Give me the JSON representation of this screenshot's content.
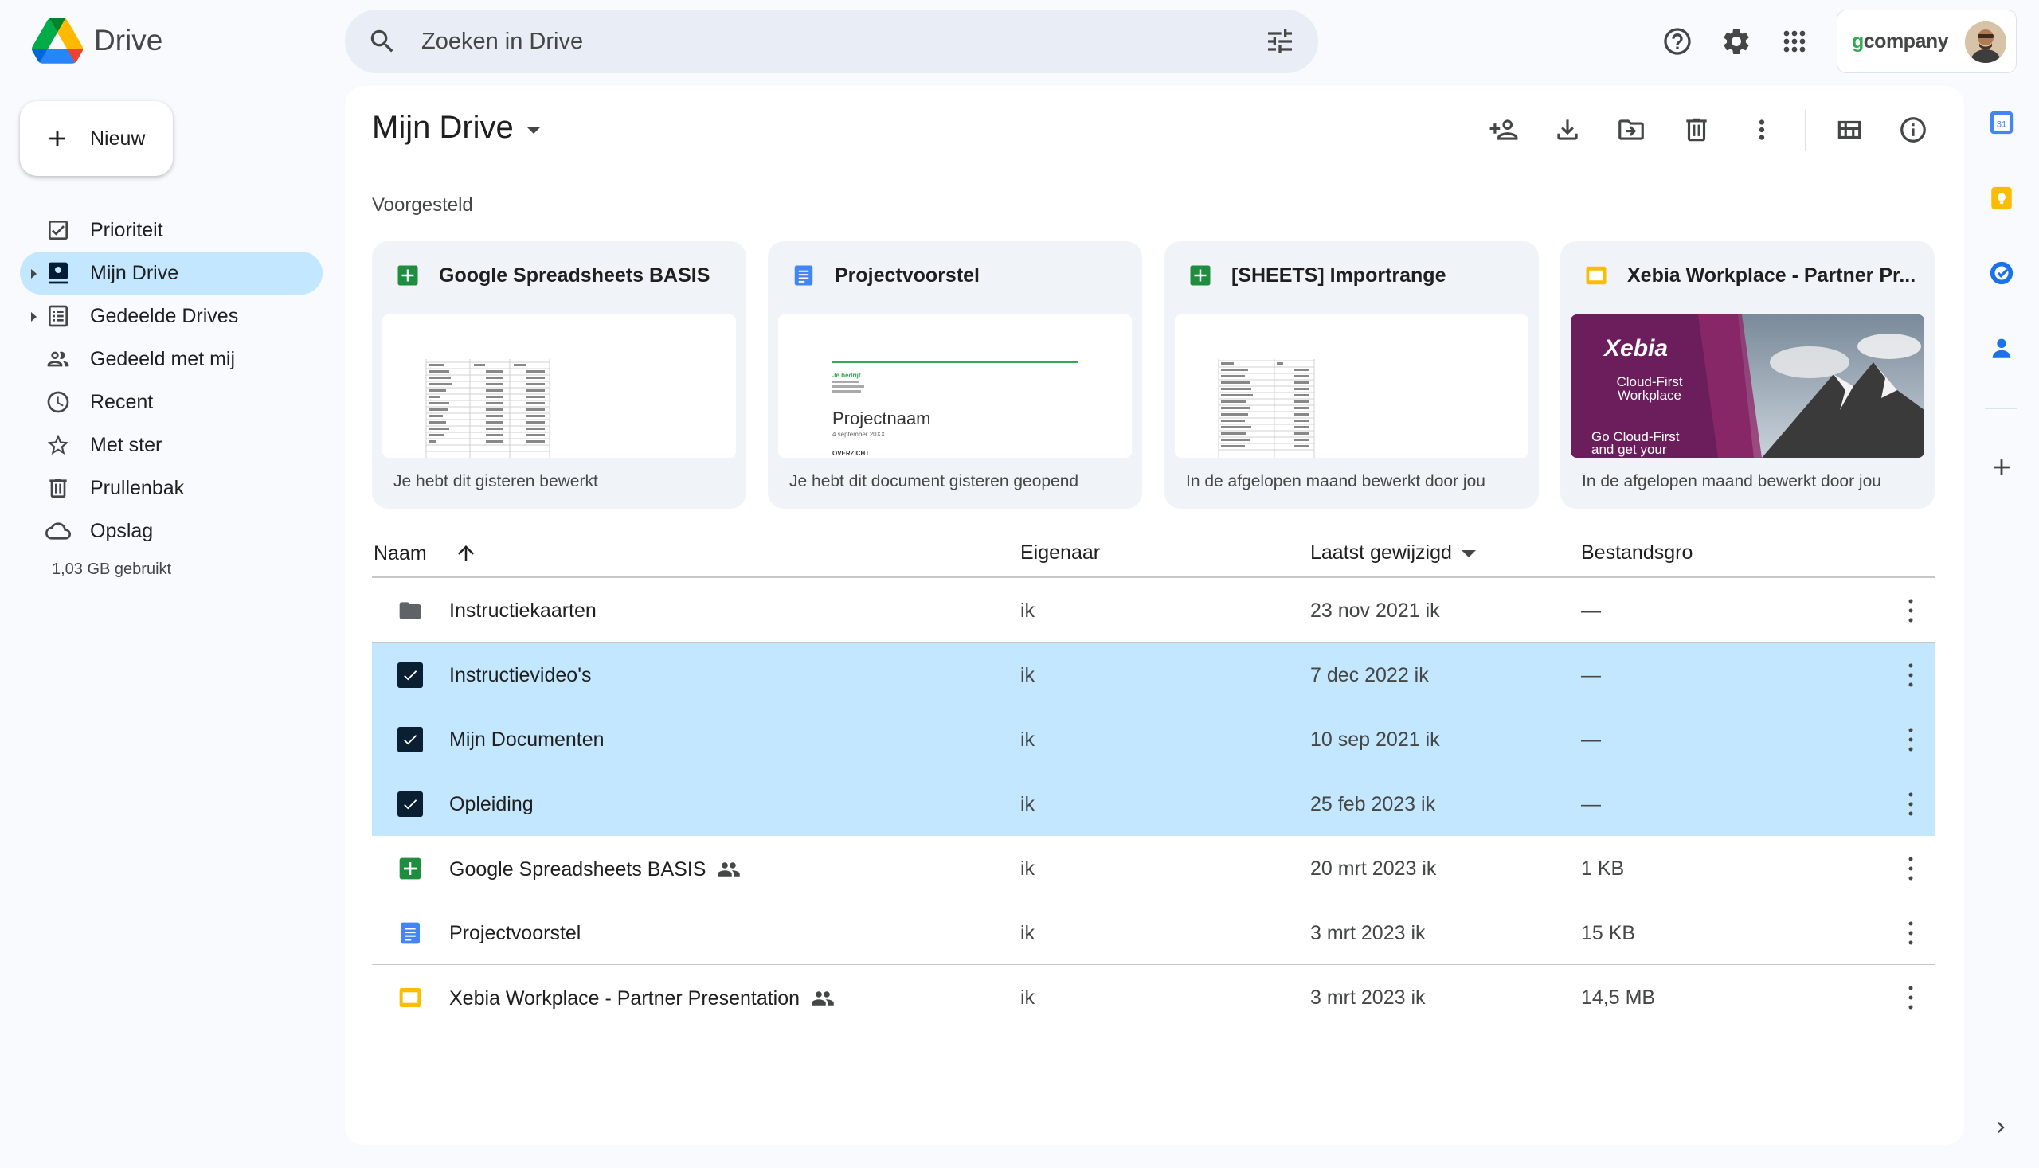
{
  "app": {
    "title": "Drive"
  },
  "search": {
    "placeholder": "Zoeken in Drive"
  },
  "account": {
    "brand_g": "g",
    "brand_rest": "company"
  },
  "sidebar": {
    "new_label": "Nieuw",
    "items": [
      {
        "label": "Prioriteit",
        "icon": "priority-icon"
      },
      {
        "label": "Mijn Drive",
        "icon": "my-drive-icon",
        "active": true
      },
      {
        "label": "Gedeelde Drives",
        "icon": "shared-drives-icon"
      },
      {
        "label": "Gedeeld met mij",
        "icon": "shared-with-me-icon"
      },
      {
        "label": "Recent",
        "icon": "clock-icon"
      },
      {
        "label": "Met ster",
        "icon": "star-icon"
      },
      {
        "label": "Prullenbak",
        "icon": "trash-icon"
      },
      {
        "label": "Opslag",
        "icon": "cloud-icon"
      }
    ],
    "storage_used": "1,03 GB gebruikt"
  },
  "main": {
    "title": "Mijn Drive",
    "suggested_label": "Voorgesteld",
    "cards": [
      {
        "title": "Google Spreadsheets BASIS",
        "type": "sheets",
        "footer": "Je hebt dit gisteren bewerkt"
      },
      {
        "title": "Projectvoorstel",
        "type": "docs",
        "footer": "Je hebt dit document gisteren geopend",
        "thumb_heading": "Projectnaam",
        "thumb_company": "Je bedrijf",
        "thumb_date": "4 september 20XX",
        "thumb_section": "OVERZICHT"
      },
      {
        "title": "[SHEETS] Importrange",
        "type": "sheets",
        "footer": "In de afgelopen maand bewerkt door jou"
      },
      {
        "title": "Xebia Workplace - Partner Pr...",
        "type": "slides",
        "footer": "In de afgelopen maand bewerkt door jou",
        "thumb_brand": "Xebia",
        "thumb_line1": "Cloud-First",
        "thumb_line2": "Workplace",
        "thumb_line3": "Go Cloud-First",
        "thumb_line4": "and get your"
      }
    ],
    "columns": {
      "name": "Naam",
      "owner": "Eigenaar",
      "modified": "Laatst gewijzigd",
      "size": "Bestandsgro"
    },
    "rows": [
      {
        "name": "Instructiekaarten",
        "type": "folder",
        "owner": "ik",
        "date": "23 nov 2021",
        "by": "ik",
        "size": "—",
        "selected": false,
        "shared": false
      },
      {
        "name": "Instructievideo's",
        "type": "folder",
        "owner": "ik",
        "date": "7 dec 2022",
        "by": "ik",
        "size": "—",
        "selected": true,
        "shared": false
      },
      {
        "name": "Mijn Documenten",
        "type": "folder",
        "owner": "ik",
        "date": "10 sep 2021",
        "by": "ik",
        "size": "—",
        "selected": true,
        "shared": false
      },
      {
        "name": "Opleiding",
        "type": "folder",
        "owner": "ik",
        "date": "25 feb 2023",
        "by": "ik",
        "size": "—",
        "selected": true,
        "shared": false
      },
      {
        "name": "Google Spreadsheets BASIS",
        "type": "sheets",
        "owner": "ik",
        "date": "20 mrt 2023",
        "by": "ik",
        "size": "1 KB",
        "selected": false,
        "shared": true
      },
      {
        "name": "Projectvoorstel",
        "type": "docs",
        "owner": "ik",
        "date": "3 mrt 2023",
        "by": "ik",
        "size": "15 KB",
        "selected": false,
        "shared": false
      },
      {
        "name": "Xebia Workplace - Partner Presentation",
        "type": "slides",
        "owner": "ik",
        "date": "3 mrt 2023",
        "by": "ik",
        "size": "14,5 MB",
        "selected": false,
        "shared": true
      }
    ]
  },
  "colors": {
    "selected": "#c2e7ff",
    "sheets": "#1e8e3e",
    "docs": "#4285f4",
    "slides": "#fbbc04",
    "folder": "#5f6368"
  }
}
